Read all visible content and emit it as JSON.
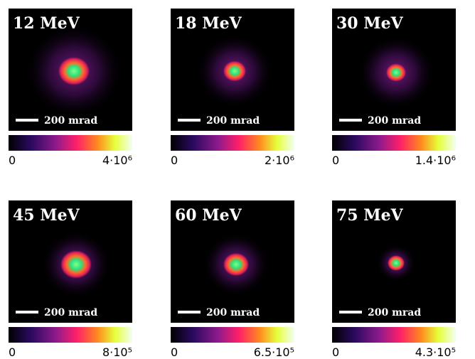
{
  "panels": [
    {
      "title": "12 MeV",
      "scale_bar": "200 mrad",
      "colorbar_min": "0",
      "colorbar_max": "4·10⁶"
    },
    {
      "title": "18 MeV",
      "scale_bar": "200 mrad",
      "colorbar_min": "0",
      "colorbar_max": "2·10⁶"
    },
    {
      "title": "30 MeV",
      "scale_bar": "200 mrad",
      "colorbar_min": "0",
      "colorbar_max": "1.4·10⁶"
    },
    {
      "title": "45 MeV",
      "scale_bar": "200 mrad",
      "colorbar_min": "0",
      "colorbar_max": "8·10⁵"
    },
    {
      "title": "60 MeV",
      "scale_bar": "200 mrad",
      "colorbar_min": "0",
      "colorbar_max": "6.5·10⁵"
    },
    {
      "title": "75 MeV",
      "scale_bar": "200 mrad",
      "colorbar_min": "0",
      "colorbar_max": "4.3·10⁵"
    }
  ]
}
